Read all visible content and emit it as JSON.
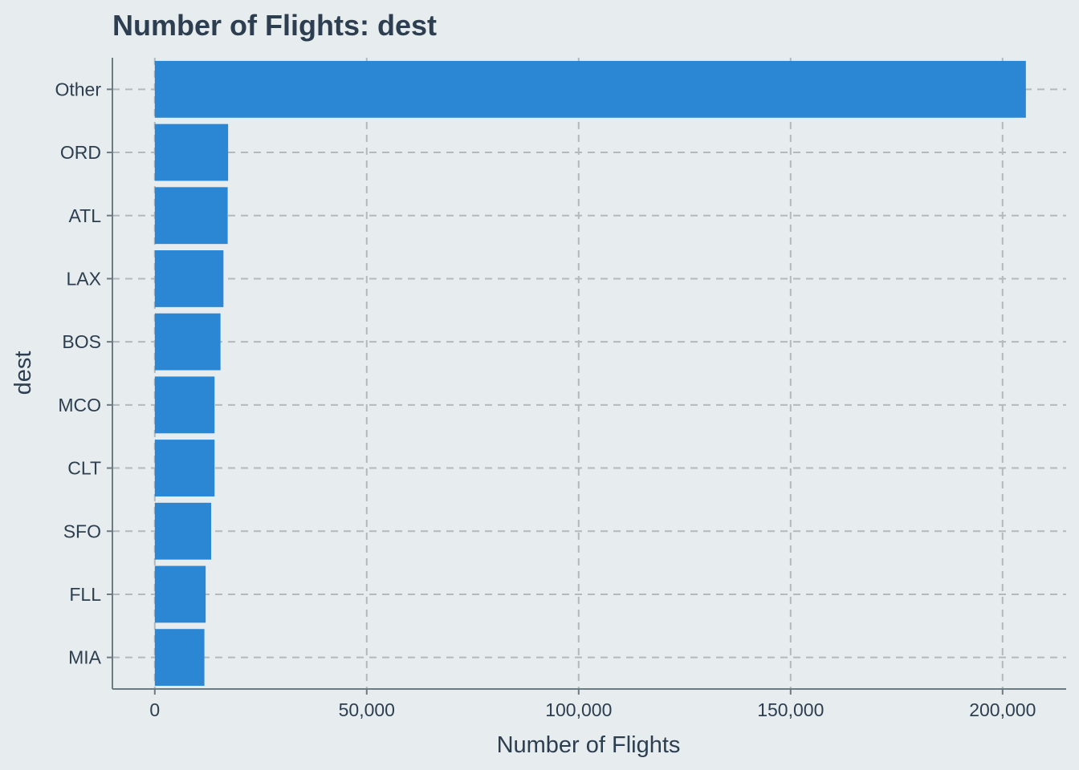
{
  "chart_data": {
    "type": "bar",
    "orientation": "horizontal",
    "title": "Number of Flights: dest",
    "xlabel": "Number of Flights",
    "ylabel": "dest",
    "categories": [
      "Other",
      "ORD",
      "ATL",
      "LAX",
      "BOS",
      "MCO",
      "CLT",
      "SFO",
      "FLL",
      "MIA"
    ],
    "values": [
      205500,
      17300,
      17200,
      16200,
      15500,
      14100,
      14100,
      13300,
      12000,
      11700
    ],
    "xlim": [
      -10000,
      215000
    ],
    "xticks": [
      0,
      50000,
      100000,
      150000,
      200000
    ],
    "xtick_labels": [
      "0",
      "50,000",
      "100,000",
      "150,000",
      "200,000"
    ],
    "grid": true,
    "bar_color": "#2b87d3",
    "background_color": "#e7ecee"
  }
}
